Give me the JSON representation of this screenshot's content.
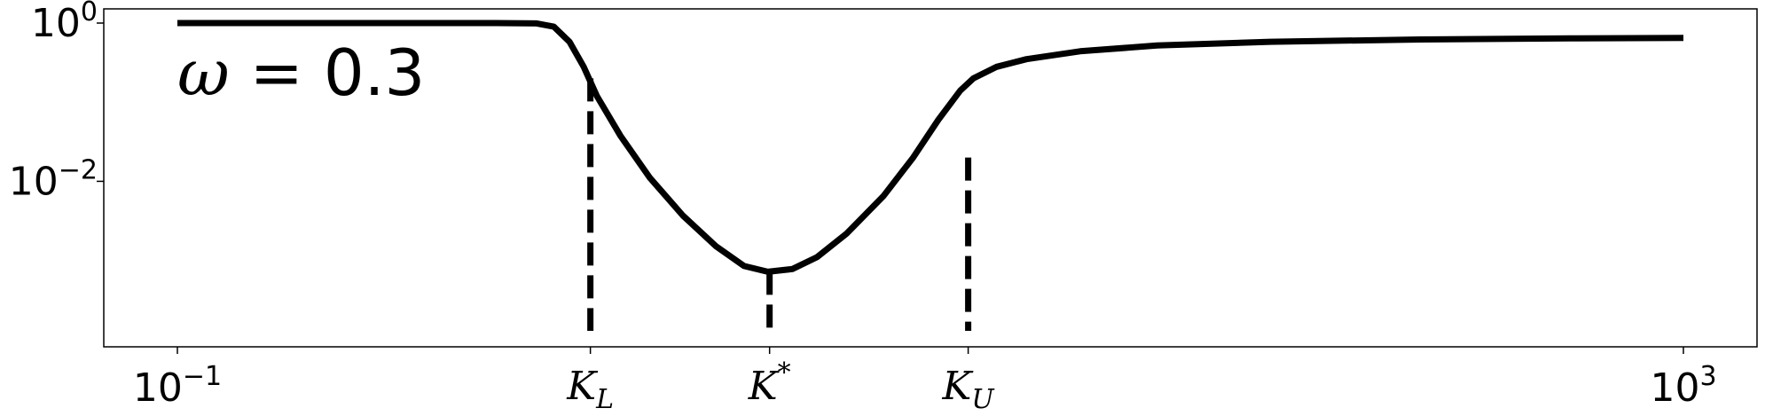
{
  "chart_data": {
    "type": "line",
    "xscale": "log",
    "yscale": "log",
    "xlim": [
      0.1,
      1000
    ],
    "ylim": [
      0.0002,
      1.0
    ],
    "x_ticks": [
      {
        "base": "10",
        "exp": "−1",
        "x": 0.1
      },
      {
        "base": "10",
        "exp": "3",
        "x": 1000
      }
    ],
    "y_ticks": [
      {
        "base": "10",
        "exp": "0",
        "y": 1.0
      },
      {
        "base": "10",
        "exp": "−2",
        "y": 0.01
      }
    ],
    "named_x_ticks": [
      {
        "main": "K",
        "sub": "L",
        "sup": "",
        "x": 1.25
      },
      {
        "main": "K",
        "sub": "",
        "sup": "*",
        "x": 3.74
      },
      {
        "main": "K",
        "sub": "U",
        "sup": "",
        "x": 12.6
      }
    ],
    "annotation": {
      "symbol": "ω",
      "text": " = 0.3"
    },
    "series": [
      {
        "color": "#000000",
        "x": [
          0.1,
          0.2,
          0.4,
          0.7,
          0.9,
          1.0,
          1.1,
          1.2,
          1.3,
          1.5,
          1.8,
          2.2,
          2.7,
          3.2,
          3.7,
          4.3,
          5.0,
          6.0,
          7.5,
          9.0,
          10.5,
          12.0,
          13.0,
          15.0,
          18.0,
          25.0,
          40.0,
          80.0,
          200.0,
          500.0,
          1000.0
        ],
        "y": [
          1.0,
          1.0,
          1.0,
          1.0,
          0.99,
          0.9,
          0.58,
          0.28,
          0.12,
          0.038,
          0.011,
          0.0037,
          0.0015,
          0.00085,
          0.00072,
          0.00078,
          0.0011,
          0.0022,
          0.0065,
          0.02,
          0.06,
          0.14,
          0.2,
          0.28,
          0.35,
          0.44,
          0.52,
          0.58,
          0.62,
          0.64,
          0.65
        ]
      }
    ],
    "vlines": [
      {
        "x": 1.25,
        "y_top": 0.2
      },
      {
        "x": 3.74,
        "y_top": 0.00072
      },
      {
        "x": 12.6,
        "y_top": 0.02
      }
    ]
  }
}
